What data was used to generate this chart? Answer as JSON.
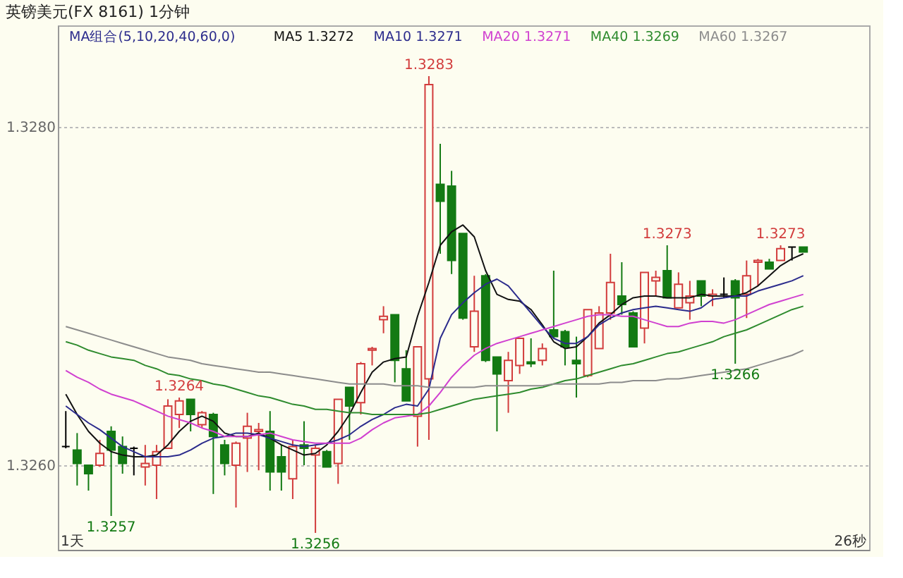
{
  "chart_data": {
    "type": "candlestick",
    "title": "英镑美元(FX 8161)  1分钟",
    "legend_title": "MA组合(5,10,20,40,60,0)",
    "legend": "top",
    "grid": "y",
    "tick_labels": "y",
    "ylim": [
      1.3255,
      1.3286
    ],
    "yticks": [
      {
        "value": 1.326,
        "label": "1.3260"
      },
      {
        "value": 1.328,
        "label": "1.3280"
      }
    ],
    "categories": [
      null,
      null,
      null,
      null,
      null,
      null,
      null,
      null,
      null,
      null,
      null,
      null,
      null,
      null,
      null,
      null,
      null,
      null,
      null,
      null,
      null,
      null,
      null,
      null,
      null,
      null,
      null,
      null,
      null,
      null,
      null,
      null,
      null,
      null,
      null,
      null,
      null,
      null,
      null,
      null,
      null,
      null,
      null,
      null,
      null,
      null,
      null,
      null,
      null,
      null,
      null,
      null,
      null,
      null,
      null,
      null,
      null,
      null,
      null,
      null,
      null,
      null,
      null,
      null,
      null,
      null
    ],
    "ohlc": [
      [
        1.32611,
        1.32632,
        1.3261,
        1.32611
      ],
      [
        1.32609,
        1.32619,
        1.32588,
        1.32601
      ],
      [
        1.326,
        1.326,
        1.32585,
        1.32595
      ],
      [
        1.326,
        1.32615,
        1.32599,
        1.32607
      ],
      [
        1.3262,
        1.32623,
        1.3257,
        1.32609
      ],
      [
        1.32611,
        1.32617,
        1.32595,
        1.32601
      ],
      [
        1.3261,
        1.32611,
        1.32594,
        1.3261
      ],
      [
        1.32599,
        1.32612,
        1.32588,
        1.32601
      ],
      [
        1.326,
        1.32612,
        1.3258,
        1.32608
      ],
      [
        1.3261,
        1.32639,
        1.3261,
        1.32635
      ],
      [
        1.3263,
        1.3264,
        1.32622,
        1.32638
      ],
      [
        1.32639,
        1.32639,
        1.3262,
        1.3263
      ],
      [
        1.32624,
        1.32632,
        1.32622,
        1.32631
      ],
      [
        1.3263,
        1.32631,
        1.32583,
        1.32617
      ],
      [
        1.32612,
        1.32615,
        1.32594,
        1.32601
      ],
      [
        1.326,
        1.32614,
        1.32575,
        1.32613
      ],
      [
        1.32616,
        1.32631,
        1.32596,
        1.32623
      ],
      [
        1.3262,
        1.32625,
        1.32597,
        1.32621
      ],
      [
        1.3262,
        1.32632,
        1.32585,
        1.32596
      ],
      [
        1.32605,
        1.32612,
        1.32585,
        1.32596
      ],
      [
        1.32592,
        1.32615,
        1.3258,
        1.32611
      ],
      [
        1.32612,
        1.32626,
        1.326,
        1.3261
      ],
      [
        1.32606,
        1.32612,
        1.3256,
        1.3261
      ],
      [
        1.32608,
        1.32609,
        1.32599,
        1.32599
      ],
      [
        1.32601,
        1.32639,
        1.32589,
        1.32639
      ],
      [
        1.32646,
        1.32646,
        1.32615,
        1.32635
      ],
      [
        1.32637,
        1.32661,
        1.3263,
        1.3266
      ],
      [
        1.32668,
        1.3267,
        1.32659,
        1.32669
      ],
      [
        1.32686,
        1.32694,
        1.32678,
        1.32688
      ],
      [
        1.32689,
        1.32689,
        1.32649,
        1.32662
      ],
      [
        1.32657,
        1.32668,
        1.32638,
        1.32638
      ],
      [
        1.32629,
        1.3267,
        1.32611,
        1.3267
      ],
      [
        1.32651,
        1.3283,
        1.32615,
        1.32825
      ],
      [
        1.32766,
        1.3279,
        1.32725,
        1.32756
      ],
      [
        1.32765,
        1.32774,
        1.32713,
        1.32721
      ],
      [
        1.32737,
        1.32737,
        1.32686,
        1.32687
      ],
      [
        1.3267,
        1.32712,
        1.32667,
        1.32691
      ],
      [
        1.32712,
        1.32713,
        1.32661,
        1.32662
      ],
      [
        1.32664,
        1.32664,
        1.3262,
        1.32654
      ],
      [
        1.3265,
        1.32667,
        1.32631,
        1.32662
      ],
      [
        1.32659,
        1.32675,
        1.32654,
        1.32675
      ],
      [
        1.32661,
        1.32675,
        1.32658,
        1.3266
      ],
      [
        1.32662,
        1.32672,
        1.32659,
        1.32669
      ],
      [
        1.3268,
        1.32715,
        1.32675,
        1.32676
      ],
      [
        1.32679,
        1.3268,
        1.32659,
        1.3267
      ],
      [
        1.32662,
        1.32676,
        1.3264,
        1.3266
      ],
      [
        1.32653,
        1.32692,
        1.32652,
        1.32692
      ],
      [
        1.32669,
        1.32694,
        1.32669,
        1.3269
      ],
      [
        1.3269,
        1.32725,
        1.32686,
        1.32708
      ],
      [
        1.327,
        1.3272,
        1.32689,
        1.32695
      ],
      [
        1.3269,
        1.32691,
        1.3267,
        1.3267
      ],
      [
        1.32681,
        1.32714,
        1.32672,
        1.32714
      ],
      [
        1.32709,
        1.32715,
        1.327,
        1.32711
      ],
      [
        1.32715,
        1.3273,
        1.32699,
        1.32699
      ],
      [
        1.32693,
        1.32714,
        1.32693,
        1.32707
      ],
      [
        1.32696,
        1.32709,
        1.32686,
        1.327
      ],
      [
        1.32709,
        1.32709,
        1.32694,
        1.327
      ],
      [
        1.327,
        1.32704,
        1.32694,
        1.32701
      ],
      [
        1.32701,
        1.32711,
        1.32699,
        1.32701
      ],
      [
        1.32709,
        1.3271,
        1.3266,
        1.32699
      ],
      [
        1.32701,
        1.32721,
        1.32687,
        1.32712
      ],
      [
        1.3272,
        1.32722,
        1.32706,
        1.32721
      ],
      [
        1.3272,
        1.32722,
        1.32716,
        1.32716
      ],
      [
        1.32721,
        1.3273,
        1.32721,
        1.32728
      ],
      [
        1.32729,
        1.32729,
        1.32721,
        1.32729
      ],
      [
        1.32729,
        1.32729,
        1.32726,
        1.32726
      ]
    ],
    "colors": [
      "#000000",
      "#137a13",
      "#137a13",
      "#d23c3c",
      "#137a13",
      "#137a13",
      "#000000",
      "#d23c3c",
      "#d23c3c",
      "#d23c3c",
      "#d23c3c",
      "#137a13",
      "#d23c3c",
      "#137a13",
      "#137a13",
      "#d23c3c",
      "#d23c3c",
      "#d23c3c",
      "#137a13",
      "#137a13",
      "#d23c3c",
      "#137a13",
      "#d23c3c",
      "#137a13",
      "#d23c3c",
      "#137a13",
      "#d23c3c",
      "#d23c3c",
      "#d23c3c",
      "#137a13",
      "#137a13",
      "#d23c3c",
      "#d23c3c",
      "#137a13",
      "#137a13",
      "#137a13",
      "#d23c3c",
      "#137a13",
      "#137a13",
      "#d23c3c",
      "#d23c3c",
      "#137a13",
      "#d23c3c",
      "#137a13",
      "#137a13",
      "#137a13",
      "#d23c3c",
      "#d23c3c",
      "#d23c3c",
      "#137a13",
      "#137a13",
      "#d23c3c",
      "#d23c3c",
      "#137a13",
      "#d23c3c",
      "#d23c3c",
      "#137a13",
      "#d23c3c",
      "#000000",
      "#137a13",
      "#d23c3c",
      "#d23c3c",
      "#137a13",
      "#d23c3c",
      "#000000",
      "#137a13"
    ],
    "series": [
      {
        "name": "MA5 1.3272",
        "type": "line",
        "color": "#111111",
        "values": [
          1.32642,
          1.3263,
          1.3262,
          1.32613,
          1.32608,
          1.32606,
          1.32605,
          1.32605,
          1.32606,
          1.32612,
          1.3262,
          1.32626,
          1.32629,
          1.32626,
          1.32619,
          1.32617,
          1.32617,
          1.32619,
          1.32616,
          1.32612,
          1.32609,
          1.32606,
          1.32607,
          1.32612,
          1.3262,
          1.3263,
          1.32643,
          1.32655,
          1.32661,
          1.32663,
          1.32664,
          1.32688,
          1.32708,
          1.3273,
          1.32738,
          1.32742,
          1.32735,
          1.32715,
          1.32701,
          1.32698,
          1.32697,
          1.32692,
          1.32683,
          1.32673,
          1.32669,
          1.3267,
          1.32676,
          1.32684,
          1.32689,
          1.32695,
          1.32699,
          1.327,
          1.327,
          1.32699,
          1.32699,
          1.32699,
          1.32701,
          1.327,
          1.327,
          1.327,
          1.32702,
          1.32706,
          1.32712,
          1.32718,
          1.32722,
          1.32725
        ]
      },
      {
        "name": "MA10 1.3271",
        "type": "line",
        "color": "#2b2b8c",
        "values": [
          1.32635,
          1.3263,
          1.32625,
          1.32621,
          1.32616,
          1.32611,
          1.32608,
          1.32605,
          1.32605,
          1.32605,
          1.32606,
          1.32609,
          1.32613,
          1.32616,
          1.32617,
          1.32619,
          1.32619,
          1.32618,
          1.32616,
          1.32614,
          1.32612,
          1.32611,
          1.32612,
          1.32613,
          1.32615,
          1.32618,
          1.32623,
          1.32627,
          1.3263,
          1.32634,
          1.32636,
          1.32635,
          1.32645,
          1.32675,
          1.32689,
          1.32696,
          1.32702,
          1.32707,
          1.3271,
          1.32706,
          1.32698,
          1.3269,
          1.32682,
          1.32675,
          1.32672,
          1.32672,
          1.32676,
          1.32683,
          1.32687,
          1.3269,
          1.32692,
          1.32693,
          1.32694,
          1.32693,
          1.32692,
          1.32691,
          1.32693,
          1.32698,
          1.32699,
          1.327,
          1.327,
          1.32703,
          1.32705,
          1.32707,
          1.32709,
          1.32712
        ]
      },
      {
        "name": "MA20 1.3271",
        "type": "line",
        "color": "#d040d0",
        "values": [
          1.32656,
          1.32652,
          1.32649,
          1.32645,
          1.32642,
          1.3264,
          1.32638,
          1.32635,
          1.32632,
          1.32629,
          1.32627,
          1.32625,
          1.32622,
          1.3262,
          1.32617,
          1.32617,
          1.32617,
          1.32618,
          1.32619,
          1.32617,
          1.32615,
          1.32614,
          1.32613,
          1.32613,
          1.32613,
          1.32613,
          1.32616,
          1.32621,
          1.32625,
          1.32628,
          1.32629,
          1.3263,
          1.32635,
          1.32643,
          1.32652,
          1.32659,
          1.32665,
          1.32669,
          1.32672,
          1.32674,
          1.32676,
          1.32678,
          1.3268,
          1.32682,
          1.32684,
          1.32686,
          1.32688,
          1.32689,
          1.32689,
          1.32688,
          1.32688,
          1.32686,
          1.32684,
          1.32682,
          1.32682,
          1.32684,
          1.32685,
          1.32685,
          1.32684,
          1.32686,
          1.32689,
          1.32692,
          1.32695,
          1.32697,
          1.32699,
          1.32701
        ]
      },
      {
        "name": "MA40 1.3269",
        "type": "line",
        "color": "#2e8b2e",
        "values": [
          1.32673,
          1.32671,
          1.32668,
          1.32666,
          1.32664,
          1.32663,
          1.32662,
          1.32659,
          1.32657,
          1.32654,
          1.32653,
          1.32651,
          1.3265,
          1.32648,
          1.32647,
          1.32645,
          1.32643,
          1.32641,
          1.3264,
          1.32638,
          1.32636,
          1.32635,
          1.32633,
          1.32633,
          1.32632,
          1.32631,
          1.32631,
          1.3263,
          1.3263,
          1.3263,
          1.3263,
          1.3263,
          1.32631,
          1.32633,
          1.32635,
          1.32637,
          1.32639,
          1.3264,
          1.32641,
          1.32642,
          1.32643,
          1.32645,
          1.32646,
          1.32648,
          1.3265,
          1.32651,
          1.32653,
          1.32655,
          1.32657,
          1.32659,
          1.3266,
          1.32662,
          1.32664,
          1.32666,
          1.32667,
          1.32669,
          1.32671,
          1.32673,
          1.32676,
          1.32678,
          1.3268,
          1.32683,
          1.32686,
          1.32689,
          1.32692,
          1.32694
        ]
      },
      {
        "name": "MA60 1.3267",
        "type": "line",
        "color": "#8c8c8c",
        "values": [
          1.32682,
          1.3268,
          1.32678,
          1.32676,
          1.32674,
          1.32672,
          1.3267,
          1.32668,
          1.32666,
          1.32664,
          1.32663,
          1.32662,
          1.3266,
          1.32659,
          1.32658,
          1.32657,
          1.32656,
          1.32655,
          1.32655,
          1.32654,
          1.32653,
          1.32652,
          1.32651,
          1.3265,
          1.32649,
          1.32648,
          1.32648,
          1.32648,
          1.32648,
          1.32647,
          1.32647,
          1.32647,
          1.32646,
          1.32646,
          1.32646,
          1.32646,
          1.32646,
          1.32647,
          1.32647,
          1.32647,
          1.32647,
          1.32647,
          1.32647,
          1.32648,
          1.32648,
          1.32648,
          1.32648,
          1.32648,
          1.32649,
          1.32649,
          1.3265,
          1.3265,
          1.3265,
          1.32651,
          1.32651,
          1.32652,
          1.32653,
          1.32654,
          1.32655,
          1.32656,
          1.32657,
          1.32659,
          1.32661,
          1.32663,
          1.32665,
          1.32668
        ]
      }
    ],
    "annotations": [
      {
        "text": "1.3264",
        "y": 1.3264
      },
      {
        "text": "1.3257",
        "y": 1.3257
      },
      {
        "text": "1.3256",
        "y": 1.3256
      },
      {
        "text": "1.3283",
        "y": 1.3283
      },
      {
        "text": "1.3273",
        "y": 1.3273
      },
      {
        "text": "1.3266",
        "y": 1.3266
      },
      {
        "text": "1.3273",
        "y": 1.3273
      },
      "1天",
      "26秒"
    ]
  }
}
